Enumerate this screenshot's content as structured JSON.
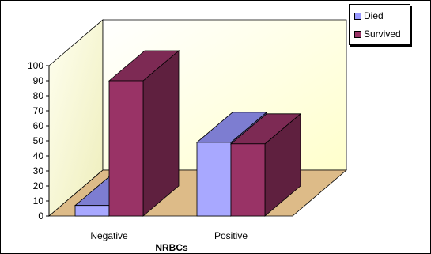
{
  "chart_data": {
    "type": "bar",
    "categories": [
      "Negative",
      "Positive"
    ],
    "series": [
      {
        "name": "Died",
        "values": [
          7,
          49
        ],
        "color": "#9999ff"
      },
      {
        "name": "Survived",
        "values": [
          90,
          48
        ],
        "color": "#993366"
      }
    ],
    "xlabel": "NRBCs",
    "ylabel": "",
    "ylim": [
      0,
      100
    ],
    "yticks": [
      "0",
      "10",
      "20",
      "30",
      "40",
      "50",
      "60",
      "70",
      "80",
      "90",
      "100"
    ],
    "style": "3d-clustered-column",
    "wall_color": "#ffffcc",
    "floor_color": "#ddbb88",
    "legend_position": "top-right"
  }
}
